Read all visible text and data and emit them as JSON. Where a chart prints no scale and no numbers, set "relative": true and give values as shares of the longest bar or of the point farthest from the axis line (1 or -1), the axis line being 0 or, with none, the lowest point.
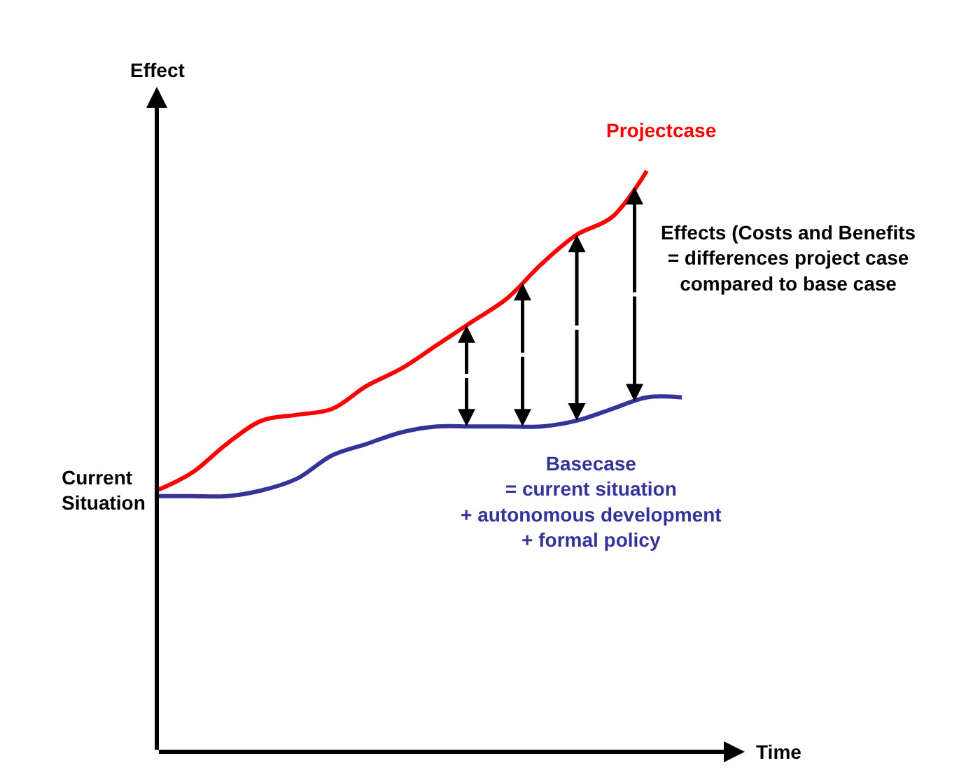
{
  "chart_data": {
    "type": "line",
    "relative": true,
    "xlabel": "Time",
    "ylabel": "Effect",
    "legend": false,
    "tick_labels": false,
    "marker": "none",
    "categories": [
      null,
      null,
      null,
      null,
      null,
      null,
      null,
      null,
      null,
      null,
      null,
      null,
      null,
      null,
      null,
      null
    ],
    "series": [
      {
        "name": "Projectcase",
        "color": "#ff0000",
        "values": [
          0.45,
          0.48,
          0.53,
          0.57,
          0.58,
          0.59,
          0.63,
          0.66,
          0.7,
          0.74,
          0.78,
          0.84,
          0.89,
          0.92,
          1.0,
          null
        ]
      },
      {
        "name": "Basecase\n= current situation\n+ autonomous development\n+ formal policy",
        "color": "#333399",
        "values": [
          0.44,
          0.44,
          0.44,
          0.45,
          0.47,
          0.51,
          0.53,
          0.55,
          0.56,
          0.56,
          0.56,
          0.56,
          0.57,
          0.59,
          0.61,
          0.61
        ]
      }
    ],
    "annotations": [
      "Current\nSituation",
      "Effects (Costs and Benefits\n= differences project case\ncompared to base case"
    ]
  }
}
